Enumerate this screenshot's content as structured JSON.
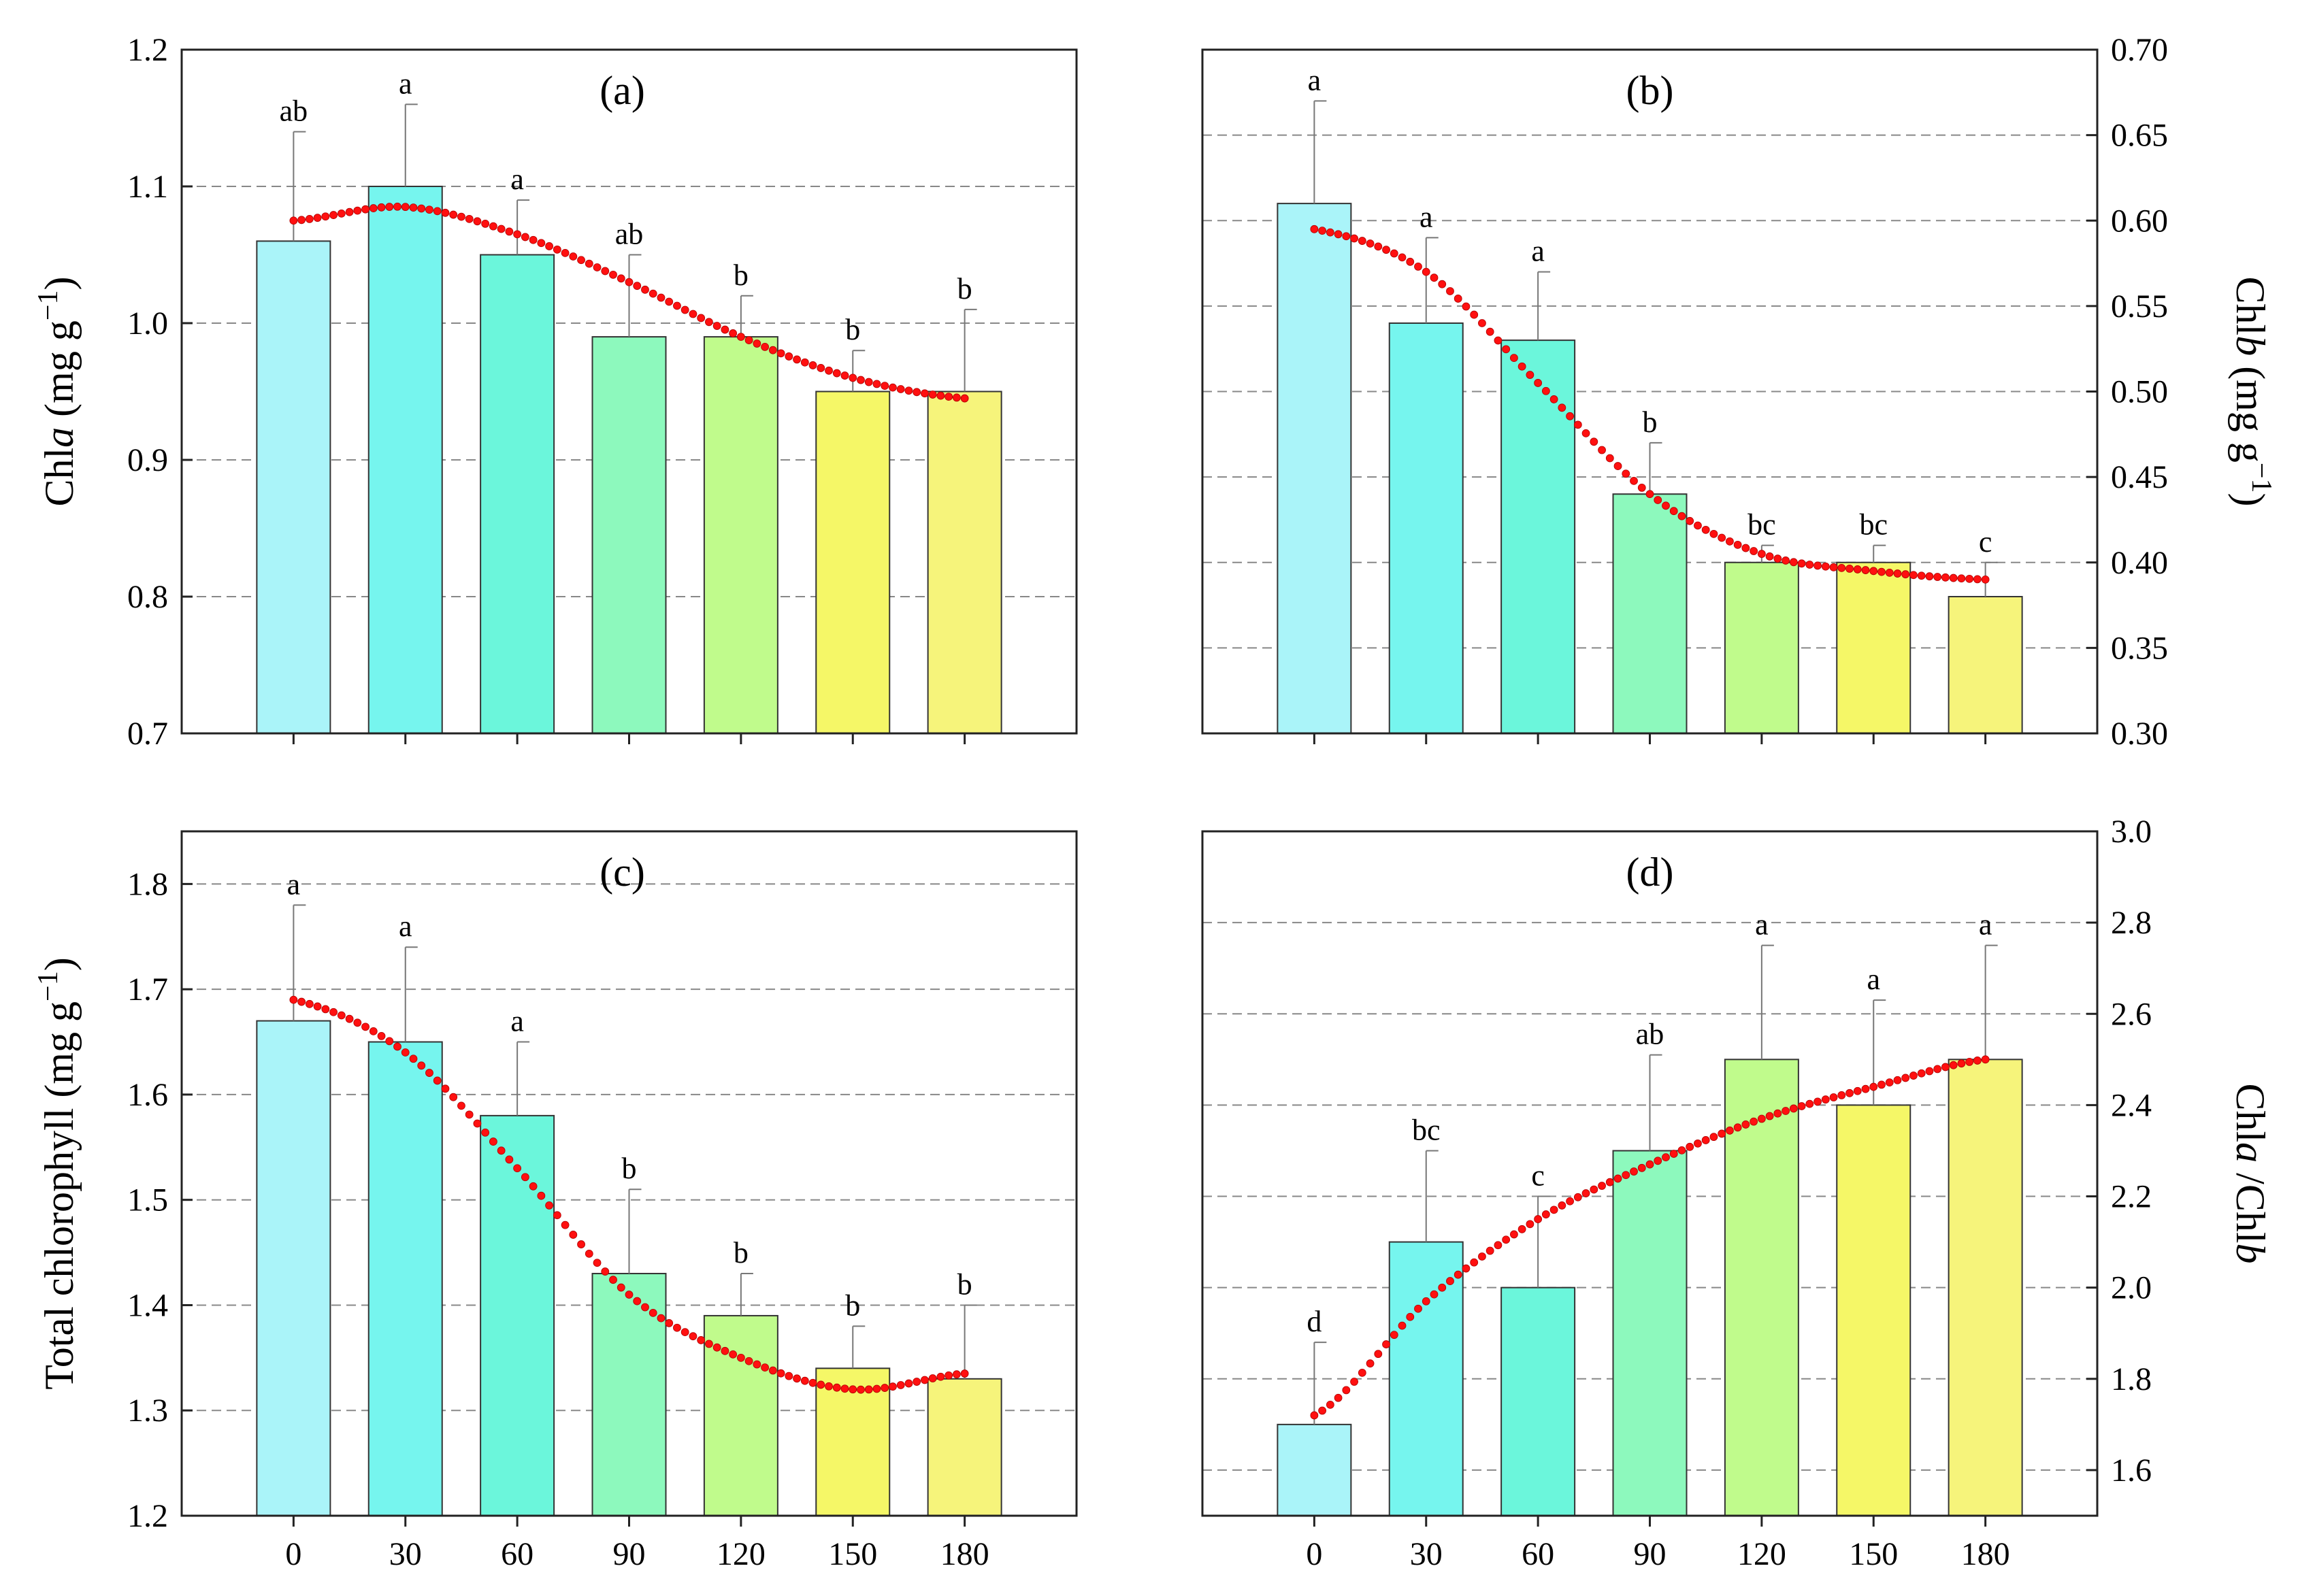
{
  "chart_data": [
    {
      "type": "bar",
      "panel_label": "(a)",
      "y_title": "Chl{i:a} (mg g{sup:−1})",
      "y_axis_side": "left",
      "ylim": [
        0.7,
        1.2
      ],
      "yticks": [
        0.7,
        0.8,
        0.9,
        1.0,
        1.1,
        1.2
      ],
      "ytick_labels": [
        "0.7",
        "0.8",
        "0.9",
        "1.0",
        "1.1",
        "1.2"
      ],
      "categories": [
        "0",
        "30",
        "60",
        "90",
        "120",
        "150",
        "180"
      ],
      "show_x_tick_labels": false,
      "values": [
        1.06,
        1.1,
        1.05,
        0.99,
        0.99,
        0.95,
        0.95
      ],
      "errors": [
        0.08,
        0.06,
        0.04,
        0.06,
        0.03,
        0.03,
        0.06
      ],
      "significance": [
        "ab",
        "a",
        "a",
        "ab",
        "b",
        "b",
        "b"
      ],
      "trend_fit": {
        "x": [
          0,
          30,
          60,
          90,
          120,
          150,
          180
        ],
        "y": [
          1.075,
          1.085,
          1.065,
          1.03,
          0.99,
          0.96,
          0.945
        ]
      }
    },
    {
      "type": "bar",
      "panel_label": "(b)",
      "y_title": "Chl{i:b} (mg g{sup:−1})",
      "y_axis_side": "right",
      "ylim": [
        0.3,
        0.7
      ],
      "yticks": [
        0.3,
        0.35,
        0.4,
        0.45,
        0.5,
        0.55,
        0.6,
        0.65,
        0.7
      ],
      "ytick_labels": [
        "0.30",
        "0.35",
        "0.40",
        "0.45",
        "0.50",
        "0.55",
        "0.60",
        "0.65",
        "0.70"
      ],
      "categories": [
        "0",
        "30",
        "60",
        "90",
        "120",
        "150",
        "180"
      ],
      "show_x_tick_labels": false,
      "values": [
        0.61,
        0.54,
        0.53,
        0.44,
        0.4,
        0.4,
        0.38
      ],
      "errors": [
        0.06,
        0.05,
        0.04,
        0.03,
        0.01,
        0.01,
        0.02
      ],
      "significance": [
        "a",
        "a",
        "a",
        "b",
        "bc",
        "bc",
        "c"
      ],
      "trend_fit": {
        "x": [
          0,
          30,
          60,
          90,
          120,
          150,
          180
        ],
        "y": [
          0.595,
          0.57,
          0.505,
          0.44,
          0.405,
          0.395,
          0.39
        ]
      }
    },
    {
      "type": "bar",
      "panel_label": "(c)",
      "y_title": "Total chlorophyll  (mg g{sup:−1})",
      "y_axis_side": "left",
      "ylim": [
        1.2,
        1.85
      ],
      "yticks": [
        1.2,
        1.3,
        1.4,
        1.5,
        1.6,
        1.7,
        1.8
      ],
      "ytick_labels": [
        "1.2",
        "1.3",
        "1.4",
        "1.5",
        "1.6",
        "1.7",
        "1.8"
      ],
      "categories": [
        "0",
        "30",
        "60",
        "90",
        "120",
        "150",
        "180"
      ],
      "show_x_tick_labels": true,
      "values": [
        1.67,
        1.65,
        1.58,
        1.43,
        1.39,
        1.34,
        1.33
      ],
      "errors": [
        0.11,
        0.09,
        0.07,
        0.08,
        0.04,
        0.04,
        0.07
      ],
      "significance": [
        "a",
        "a",
        "a",
        "b",
        "b",
        "b",
        "b"
      ],
      "trend_fit": {
        "x": [
          0,
          30,
          60,
          90,
          120,
          150,
          180
        ],
        "y": [
          1.69,
          1.64,
          1.53,
          1.41,
          1.35,
          1.32,
          1.335
        ]
      }
    },
    {
      "type": "bar",
      "panel_label": "(d)",
      "y_title": "Chl{i:a} /Chl{i:b}",
      "y_axis_side": "right",
      "ylim": [
        1.5,
        3.0
      ],
      "yticks": [
        1.6,
        1.8,
        2.0,
        2.2,
        2.4,
        2.6,
        2.8,
        3.0
      ],
      "ytick_labels": [
        "1.6",
        "1.8",
        "2.0",
        "2.2",
        "2.4",
        "2.6",
        "2.8",
        "3.0"
      ],
      "categories": [
        "0",
        "30",
        "60",
        "90",
        "120",
        "150",
        "180"
      ],
      "show_x_tick_labels": true,
      "values": [
        1.7,
        2.1,
        2.0,
        2.3,
        2.5,
        2.4,
        2.5
      ],
      "errors": [
        0.18,
        0.2,
        0.2,
        0.21,
        0.25,
        0.23,
        0.25
      ],
      "significance": [
        "d",
        "bc",
        "c",
        "ab",
        "a",
        "a",
        "a"
      ],
      "trend_fit": {
        "x": [
          0,
          30,
          60,
          90,
          120,
          150,
          180
        ],
        "y": [
          1.72,
          1.97,
          2.15,
          2.27,
          2.37,
          2.44,
          2.5
        ]
      }
    }
  ],
  "bar_colors": [
    "#aaf4f9",
    "#76f5ee",
    "#6bf6db",
    "#8df9bd",
    "#c0fb8c",
    "#f5f767",
    "#f6f47b"
  ],
  "fit_color": "#ff1010"
}
